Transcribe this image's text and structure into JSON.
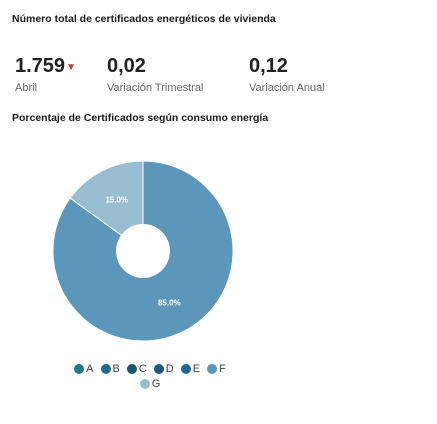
{
  "header": {
    "title": "Número total de certificados energéticos de vivienda"
  },
  "kpis": [
    {
      "value": "1.759",
      "trend_icon": "down-caret-icon",
      "label": "Abril"
    },
    {
      "value": "0,02",
      "label": "Variación Trimestral"
    },
    {
      "value": "0,12",
      "label": "Variación Anual"
    }
  ],
  "chart_section": {
    "title": "Porcentaje de Certificados según consumo energía"
  },
  "chart_data": {
    "type": "pie",
    "categories": [
      "A",
      "B",
      "C",
      "D",
      "E",
      "F",
      "G"
    ],
    "values": [
      0,
      0,
      0,
      0,
      0,
      85.0,
      15.0
    ],
    "data_labels": [
      "",
      "",
      "",
      "",
      "",
      "85.0%",
      "15.0%"
    ],
    "colors": [
      "#1b7a8f",
      "#1f6d87",
      "#185870",
      "#155a85",
      "#1e6b90",
      "#5a97ba",
      "#98bdd1"
    ],
    "legend_position": "bottom"
  }
}
